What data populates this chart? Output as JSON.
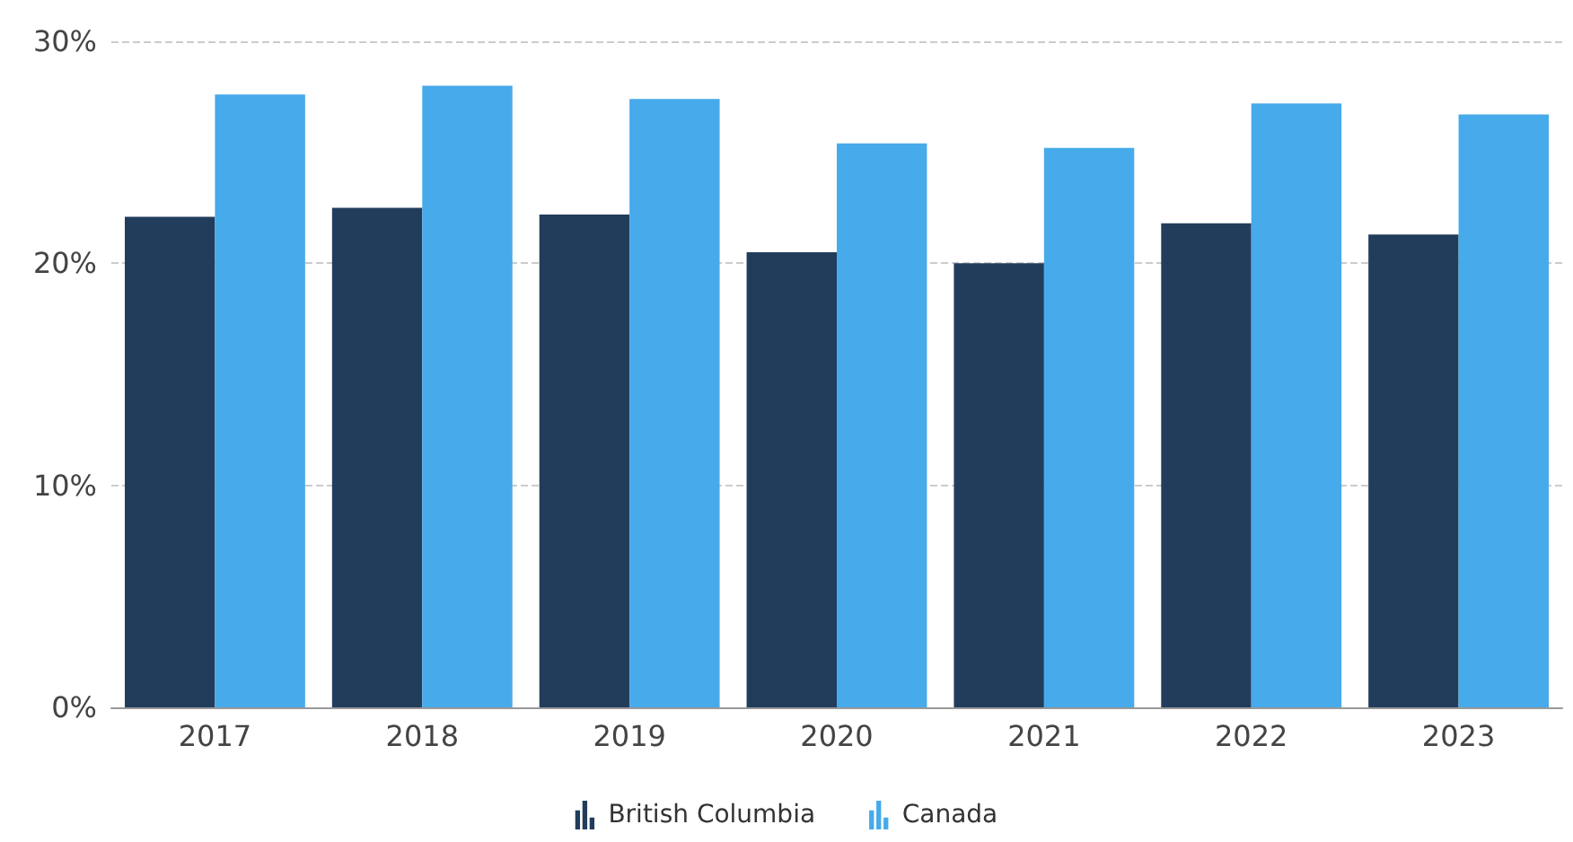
{
  "chart_data": {
    "type": "bar",
    "categories": [
      "2017",
      "2018",
      "2019",
      "2020",
      "2021",
      "2022",
      "2023"
    ],
    "series": [
      {
        "name": "British Columbia",
        "color": "#223d5c",
        "values": [
          22.1,
          22.5,
          22.2,
          20.5,
          20.0,
          21.8,
          21.3
        ]
      },
      {
        "name": "Canada",
        "color": "#47aaea",
        "values": [
          27.6,
          28.0,
          27.4,
          25.4,
          25.2,
          27.2,
          26.7
        ]
      }
    ],
    "ylim": [
      0,
      30
    ],
    "yticks": [
      {
        "value": 0,
        "label": "0%"
      },
      {
        "value": 10,
        "label": "10%"
      },
      {
        "value": 20,
        "label": "20%"
      },
      {
        "value": 30,
        "label": "30%"
      }
    ],
    "grid": "y",
    "legend": "bottom"
  }
}
